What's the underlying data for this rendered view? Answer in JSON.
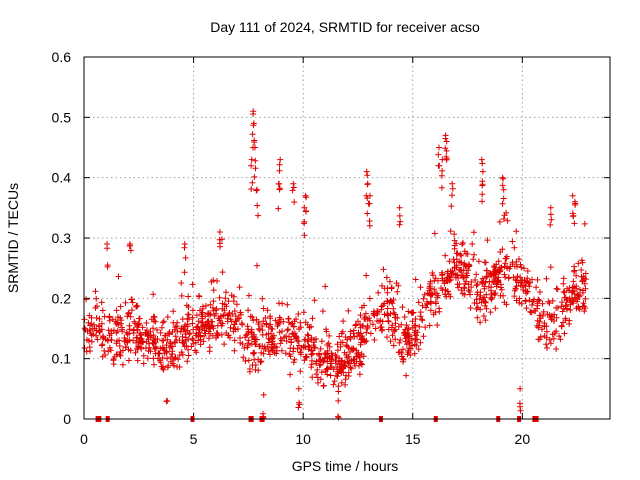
{
  "chart_data": {
    "type": "scatter",
    "title": "Day 111 of 2024, SRMTID for receiver acso",
    "xlabel": "GPS time / hours",
    "ylabel": "SRMTID / TECUs",
    "xlim": [
      0,
      24
    ],
    "ylim": [
      0,
      0.6
    ],
    "xticks": [
      0,
      5,
      10,
      15,
      20
    ],
    "yticks": [
      0,
      0.1,
      0.2,
      0.3,
      0.4,
      0.5,
      0.6
    ],
    "xtick_labels": [
      "0",
      "5",
      "10",
      "15",
      "20"
    ],
    "ytick_labels": [
      "0",
      "0.1",
      "0.2",
      "0.3",
      "0.4",
      "0.5",
      "0.6"
    ],
    "grid": true,
    "marker": "+",
    "color": "#e00000",
    "series": [
      {
        "name": "SRMTID",
        "trend": [
          [
            0.0,
            0.15
          ],
          [
            0.5,
            0.15
          ],
          [
            1.0,
            0.14
          ],
          [
            1.5,
            0.13
          ],
          [
            2.0,
            0.14
          ],
          [
            2.5,
            0.14
          ],
          [
            3.0,
            0.13
          ],
          [
            3.5,
            0.12
          ],
          [
            4.0,
            0.12
          ],
          [
            4.5,
            0.14
          ],
          [
            5.0,
            0.15
          ],
          [
            5.5,
            0.16
          ],
          [
            6.0,
            0.17
          ],
          [
            6.5,
            0.17
          ],
          [
            7.0,
            0.16
          ],
          [
            7.5,
            0.13
          ],
          [
            8.0,
            0.13
          ],
          [
            8.5,
            0.14
          ],
          [
            9.0,
            0.14
          ],
          [
            9.5,
            0.13
          ],
          [
            10.0,
            0.13
          ],
          [
            10.5,
            0.11
          ],
          [
            11.0,
            0.1
          ],
          [
            11.5,
            0.09
          ],
          [
            12.0,
            0.1
          ],
          [
            12.5,
            0.12
          ],
          [
            13.0,
            0.16
          ],
          [
            13.5,
            0.18
          ],
          [
            14.0,
            0.17
          ],
          [
            14.5,
            0.13
          ],
          [
            15.0,
            0.14
          ],
          [
            15.5,
            0.18
          ],
          [
            16.0,
            0.21
          ],
          [
            16.5,
            0.23
          ],
          [
            17.0,
            0.25
          ],
          [
            17.5,
            0.24
          ],
          [
            18.0,
            0.21
          ],
          [
            18.5,
            0.22
          ],
          [
            19.0,
            0.24
          ],
          [
            19.5,
            0.25
          ],
          [
            20.0,
            0.22
          ],
          [
            20.5,
            0.19
          ],
          [
            21.0,
            0.16
          ],
          [
            21.5,
            0.16
          ],
          [
            22.0,
            0.19
          ],
          [
            22.5,
            0.21
          ],
          [
            22.9,
            0.21
          ]
        ],
        "spikes": [
          [
            7.72,
            0.51
          ],
          [
            7.75,
            0.49
          ],
          [
            7.8,
            0.45
          ],
          [
            7.65,
            0.43
          ],
          [
            7.9,
            0.38
          ],
          [
            8.95,
            0.43
          ],
          [
            8.9,
            0.39
          ],
          [
            9.55,
            0.39
          ],
          [
            10.1,
            0.37
          ],
          [
            10.05,
            0.35
          ],
          [
            12.9,
            0.41
          ],
          [
            12.95,
            0.39
          ],
          [
            13.05,
            0.37
          ],
          [
            16.5,
            0.47
          ],
          [
            16.55,
            0.46
          ],
          [
            16.2,
            0.45
          ],
          [
            16.35,
            0.43
          ],
          [
            16.8,
            0.39
          ],
          [
            18.15,
            0.43
          ],
          [
            18.2,
            0.41
          ],
          [
            19.1,
            0.4
          ],
          [
            19.15,
            0.38
          ],
          [
            21.3,
            0.35
          ],
          [
            22.3,
            0.37
          ],
          [
            22.4,
            0.36
          ],
          [
            14.4,
            0.35
          ],
          [
            6.2,
            0.31
          ],
          [
            2.1,
            0.29
          ],
          [
            4.6,
            0.29
          ],
          [
            1.05,
            0.29
          ],
          [
            9.8,
            0.05
          ],
          [
            11.6,
            0.03
          ],
          [
            19.9,
            0.05
          ],
          [
            8.2,
            0.04
          ],
          [
            3.8,
            0.03
          ]
        ],
        "data_gaps_hours": [
          0.62,
          0.7,
          1.08,
          4.95,
          7.6,
          7.65,
          8.1,
          8.15,
          13.55,
          16.05,
          18.9,
          19.85,
          20.55,
          20.65
        ]
      }
    ]
  }
}
